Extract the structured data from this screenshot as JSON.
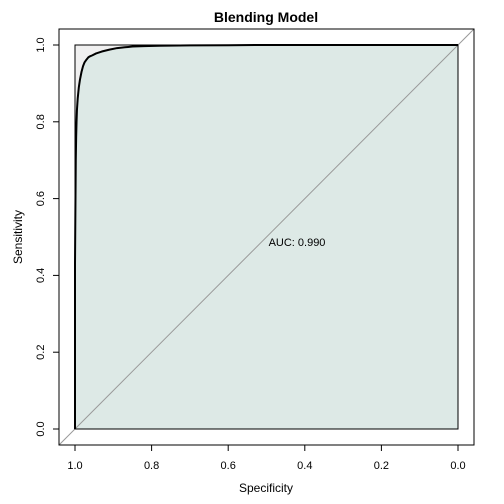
{
  "chart_data": {
    "type": "line",
    "title": "Blending Model",
    "xlabel": "Specificity",
    "ylabel": "Sensitivity",
    "x_reversed": true,
    "xlim": [
      1.0,
      0.0
    ],
    "ylim": [
      0.0,
      1.0
    ],
    "x_ticks": [
      "1.0",
      "0.8",
      "0.6",
      "0.4",
      "0.2",
      "0.0"
    ],
    "x_tick_values": [
      1.0,
      0.8,
      0.6,
      0.4,
      0.2,
      0.0
    ],
    "y_ticks": [
      "0.0",
      "0.2",
      "0.4",
      "0.6",
      "0.8",
      "1.0"
    ],
    "y_tick_values": [
      0.0,
      0.2,
      0.4,
      0.6,
      0.8,
      1.0
    ],
    "grid": false,
    "legend": "none",
    "annotation": "AUC: 0.990",
    "auc": 0.99,
    "auc_fill_color": "#dde9e6",
    "outside_fill_color": "#f0f0f0",
    "curve_color": "#000000",
    "reference_line_color": "#999999",
    "series": [
      {
        "specificity": [
          1.0,
          1.0,
          0.998,
          0.997,
          0.996,
          0.995,
          0.993,
          0.99,
          0.987,
          0.983,
          0.979,
          0.975,
          0.97,
          0.965,
          0.96,
          0.955,
          0.945,
          0.93,
          0.91,
          0.89,
          0.87,
          0.85,
          0.82,
          0.78,
          0.7,
          0.6,
          0.5,
          0.4,
          0.3,
          0.2,
          0.1,
          0.0
        ],
        "sensitivity": [
          0.0,
          0.43,
          0.7,
          0.76,
          0.8,
          0.83,
          0.86,
          0.89,
          0.91,
          0.93,
          0.945,
          0.955,
          0.962,
          0.968,
          0.971,
          0.973,
          0.978,
          0.983,
          0.988,
          0.992,
          0.994,
          0.996,
          0.997,
          0.998,
          0.999,
          0.9995,
          1.0,
          1.0,
          1.0,
          1.0,
          1.0,
          1.0
        ]
      }
    ]
  }
}
